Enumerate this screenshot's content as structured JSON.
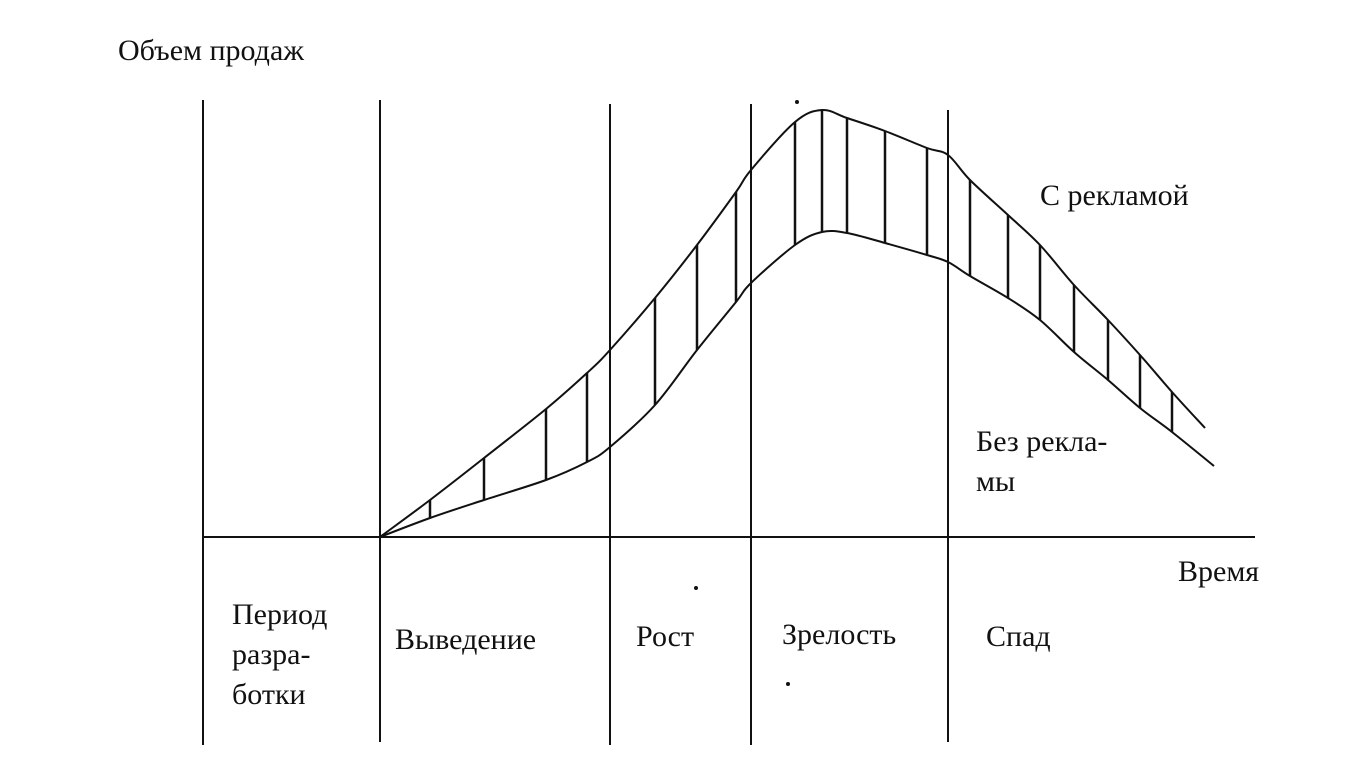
{
  "labels": {
    "y_axis": "Объем продаж",
    "x_axis": "Время",
    "with_ads": "С рекламой",
    "without_ads": [
      "Без рекла-",
      "мы"
    ]
  },
  "stages": {
    "development": [
      "Период",
      "разра-",
      "ботки"
    ],
    "introduction": "Выведение",
    "growth": "Рост",
    "maturity": "Зрелость",
    "decline": "Спад"
  },
  "colors": {
    "ink": "#111111",
    "background": "#ffffff"
  }
}
